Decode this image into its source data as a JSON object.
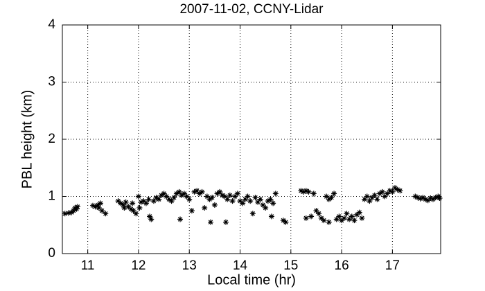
{
  "chart_data": {
    "type": "scatter",
    "title": "2007-11-02, CCNY-Lidar",
    "x_label": "Local time (hr)",
    "y_label": "PBL height (km)",
    "xlim": [
      10.5,
      17.95
    ],
    "ylim": [
      0,
      4
    ],
    "xticks": [
      11,
      12,
      13,
      14,
      15,
      16,
      17
    ],
    "yticks": [
      0,
      1,
      2,
      3,
      4
    ],
    "grid": true,
    "color": "#000000",
    "marker": "asterisk",
    "x": [
      10.55,
      10.62,
      10.68,
      10.72,
      10.75,
      10.78,
      10.8,
      11.1,
      11.15,
      11.2,
      11.22,
      11.25,
      11.28,
      11.35,
      11.6,
      11.65,
      11.7,
      11.72,
      11.75,
      11.8,
      11.85,
      11.9,
      11.95,
      11.88,
      12.0,
      12.02,
      12.05,
      12.1,
      12.15,
      12.2,
      12.22,
      12.25,
      12.3,
      12.35,
      12.4,
      12.45,
      12.5,
      12.55,
      12.6,
      12.65,
      12.7,
      12.75,
      12.8,
      12.82,
      12.85,
      12.9,
      12.95,
      13.0,
      13.05,
      13.1,
      13.15,
      13.2,
      13.25,
      13.3,
      13.35,
      13.4,
      13.42,
      13.45,
      13.5,
      13.55,
      13.6,
      13.65,
      13.7,
      13.72,
      13.75,
      13.8,
      13.85,
      13.9,
      13.95,
      14.0,
      14.05,
      14.1,
      14.15,
      14.2,
      14.25,
      14.3,
      14.35,
      14.4,
      14.45,
      14.5,
      14.55,
      14.6,
      14.62,
      14.65,
      14.7,
      14.85,
      14.9,
      15.2,
      15.25,
      15.3,
      15.35,
      15.3,
      15.4,
      15.45,
      15.5,
      15.55,
      15.6,
      15.65,
      15.7,
      15.75,
      15.8,
      15.85,
      15.75,
      15.9,
      15.95,
      16.0,
      16.05,
      16.1,
      16.15,
      16.2,
      16.25,
      16.3,
      16.35,
      16.4,
      16.45,
      16.5,
      16.55,
      16.6,
      16.65,
      16.7,
      16.75,
      16.8,
      16.85,
      16.9,
      16.95,
      17.0,
      17.05,
      17.1,
      17.15,
      17.45,
      17.5,
      17.55,
      17.6,
      17.65,
      17.7,
      17.75,
      17.8,
      17.85,
      17.9,
      17.93
    ],
    "y": [
      0.7,
      0.71,
      0.72,
      0.75,
      0.8,
      0.78,
      0.82,
      0.84,
      0.82,
      0.85,
      0.8,
      0.88,
      0.75,
      0.7,
      0.92,
      0.88,
      0.85,
      0.8,
      0.9,
      0.82,
      0.78,
      0.75,
      0.7,
      0.88,
      1.0,
      0.8,
      0.9,
      0.92,
      0.88,
      0.95,
      0.65,
      0.6,
      0.92,
      0.98,
      0.95,
      1.02,
      1.05,
      1.0,
      0.95,
      0.92,
      0.98,
      1.05,
      1.08,
      0.6,
      1.02,
      1.05,
      1.0,
      0.95,
      0.75,
      1.08,
      1.1,
      1.05,
      1.08,
      0.8,
      1.0,
      0.95,
      0.55,
      0.98,
      0.85,
      1.05,
      1.08,
      1.02,
      1.0,
      0.55,
      0.95,
      1.02,
      0.92,
      1.0,
      1.05,
      0.92,
      0.88,
      0.95,
      1.0,
      0.92,
      0.7,
      0.98,
      0.9,
      0.95,
      0.85,
      0.8,
      0.92,
      0.95,
      0.65,
      0.88,
      1.05,
      0.58,
      0.55,
      1.1,
      1.08,
      1.1,
      1.08,
      0.62,
      0.65,
      1.05,
      0.75,
      0.7,
      0.62,
      0.58,
      1.0,
      0.95,
      0.98,
      1.05,
      0.55,
      0.6,
      0.65,
      0.58,
      0.62,
      0.7,
      0.6,
      0.65,
      0.58,
      0.68,
      0.72,
      0.62,
      0.95,
      1.0,
      0.92,
      0.98,
      1.02,
      0.95,
      1.05,
      1.08,
      1.0,
      1.05,
      1.1,
      1.08,
      1.15,
      1.12,
      1.1,
      1.0,
      0.98,
      0.96,
      0.98,
      0.95,
      0.93,
      0.97,
      0.95,
      0.98,
      1.0,
      0.97
    ]
  }
}
